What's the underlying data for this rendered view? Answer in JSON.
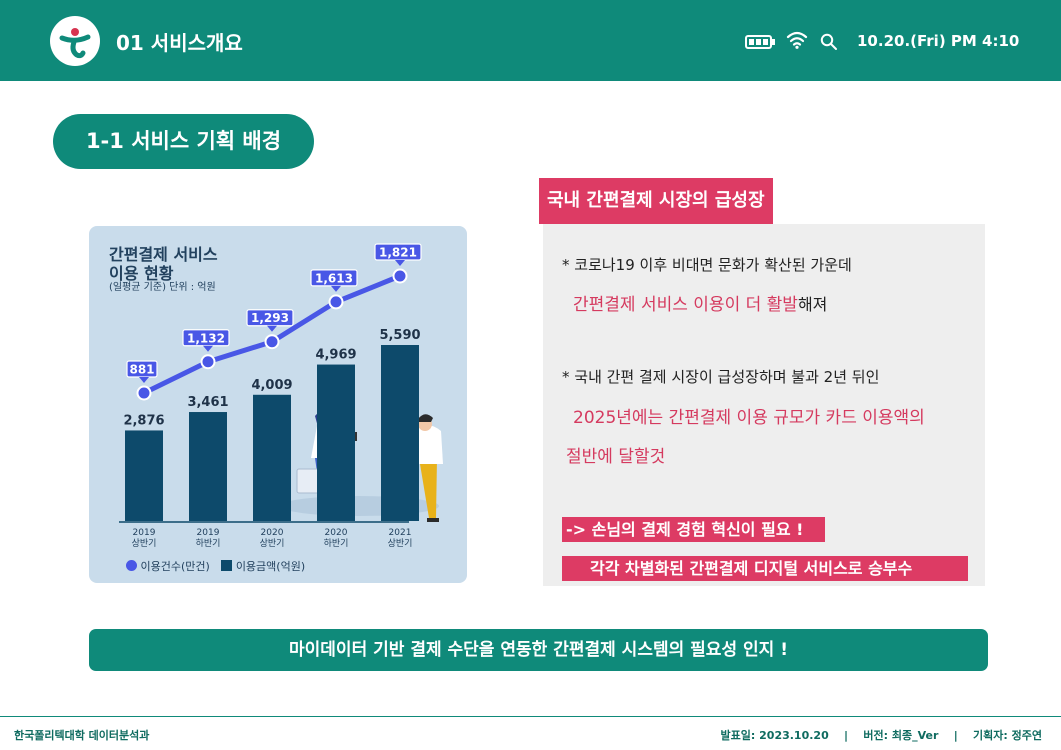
{
  "header": {
    "title": "01  서비스개요",
    "datetime": "10.20.(Fri) PM 4:10",
    "icons": [
      "logo-icon",
      "battery-icon",
      "wifi-icon",
      "search-icon"
    ]
  },
  "section": {
    "pill": "1-1 서비스 기획 배경"
  },
  "chart_card": {
    "title_line1": "간편결제 서비스",
    "title_line2": "이용 현황",
    "subtitle": "(일평균 기준) 단위 : 억원",
    "legend": [
      "이용건수(만건)",
      "이용금액(억원)"
    ]
  },
  "chart_data": {
    "type": "bar",
    "categories": [
      "2019 상반기",
      "2019 하반기",
      "2020 상반기",
      "2020 하반기",
      "2021 상반기"
    ],
    "category_lines": [
      [
        "2019",
        "상반기"
      ],
      [
        "2019",
        "하반기"
      ],
      [
        "2020",
        "상반기"
      ],
      [
        "2020",
        "하반기"
      ],
      [
        "2021",
        "상반기"
      ]
    ],
    "series": [
      {
        "name": "이용금액(억원)",
        "kind": "bar",
        "values": [
          2876,
          3461,
          4009,
          4969,
          5590
        ],
        "labels": [
          "2,876",
          "3,461",
          "4,009",
          "4,969",
          "5,590"
        ],
        "color": "#0d4a6b"
      },
      {
        "name": "이용건수(만건)",
        "kind": "line",
        "values": [
          881,
          1132,
          1293,
          1613,
          1821
        ],
        "labels": [
          "881",
          "1,132",
          "1,293",
          "1,613",
          "1,821"
        ],
        "color": "#4957e6"
      }
    ]
  },
  "right": {
    "title": "국내 간편결제 시장의 급성장",
    "p1_line1": "*  코로나19 이후 비대면 문화가 확산된 가운데",
    "p1_em": "간편결제 서비스 이용이 더 활발",
    "p1_tail": "해져",
    "p2_line1": "*  국내 간편 결제 시장이 급성장하며 불과 2년 뒤인",
    "p2_em1": "2025년에는 간편결제 이용 규모가 카드 이용액의",
    "p2_em2": "절반에 달할것",
    "band1": "->  손님의 결제 경험 혁신이 필요 !",
    "band2": "각각 차별화된 간편결제  디지털 서비스로 승부수"
  },
  "conclusion": "마이데이터 기반 결제 수단을 연동한 간편결제 시스템의 필요성 인지 !",
  "footer": {
    "left": "한국폴리텍대학 데이터분석과",
    "right": "발표일: 2023.10.20    |    버전: 최종_Ver    |    기획자: 정주연"
  }
}
